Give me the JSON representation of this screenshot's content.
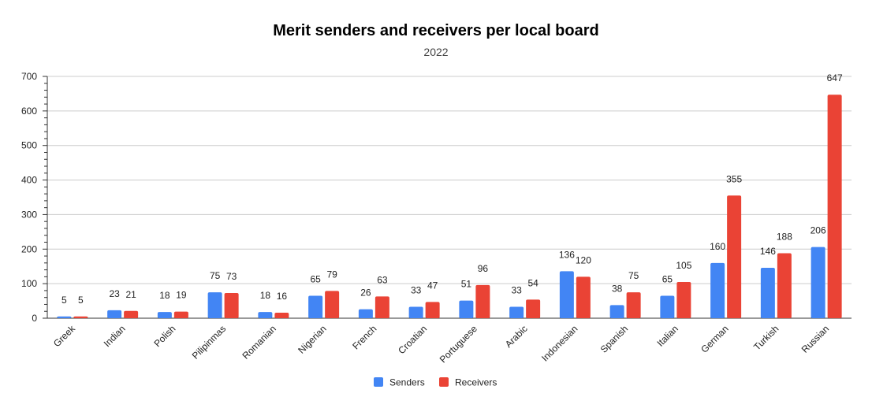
{
  "chart_data": {
    "type": "bar",
    "title": "Merit senders and receivers per local board",
    "subtitle": "2022",
    "xlabel": "",
    "ylabel": "",
    "ylim": [
      0,
      700
    ],
    "yticks": [
      0,
      100,
      200,
      300,
      400,
      500,
      600,
      700
    ],
    "grid": true,
    "legend_position": "bottom",
    "categories": [
      "Greek",
      "Indian",
      "Polish",
      "Pilipinmas",
      "Romanian",
      "Nigerian",
      "French",
      "Croatian",
      "Portuguese",
      "Arabic",
      "Indonesian",
      "Spanish",
      "Italian",
      "German",
      "Turkish",
      "Russian"
    ],
    "series": [
      {
        "name": "Senders",
        "color": "#4285f4",
        "values": [
          5,
          23,
          18,
          75,
          18,
          65,
          26,
          33,
          51,
          33,
          136,
          38,
          65,
          160,
          146,
          206
        ]
      },
      {
        "name": "Receivers",
        "color": "#ea4335",
        "values": [
          5,
          21,
          19,
          73,
          16,
          79,
          63,
          47,
          96,
          54,
          120,
          75,
          105,
          355,
          188,
          647
        ]
      }
    ]
  }
}
